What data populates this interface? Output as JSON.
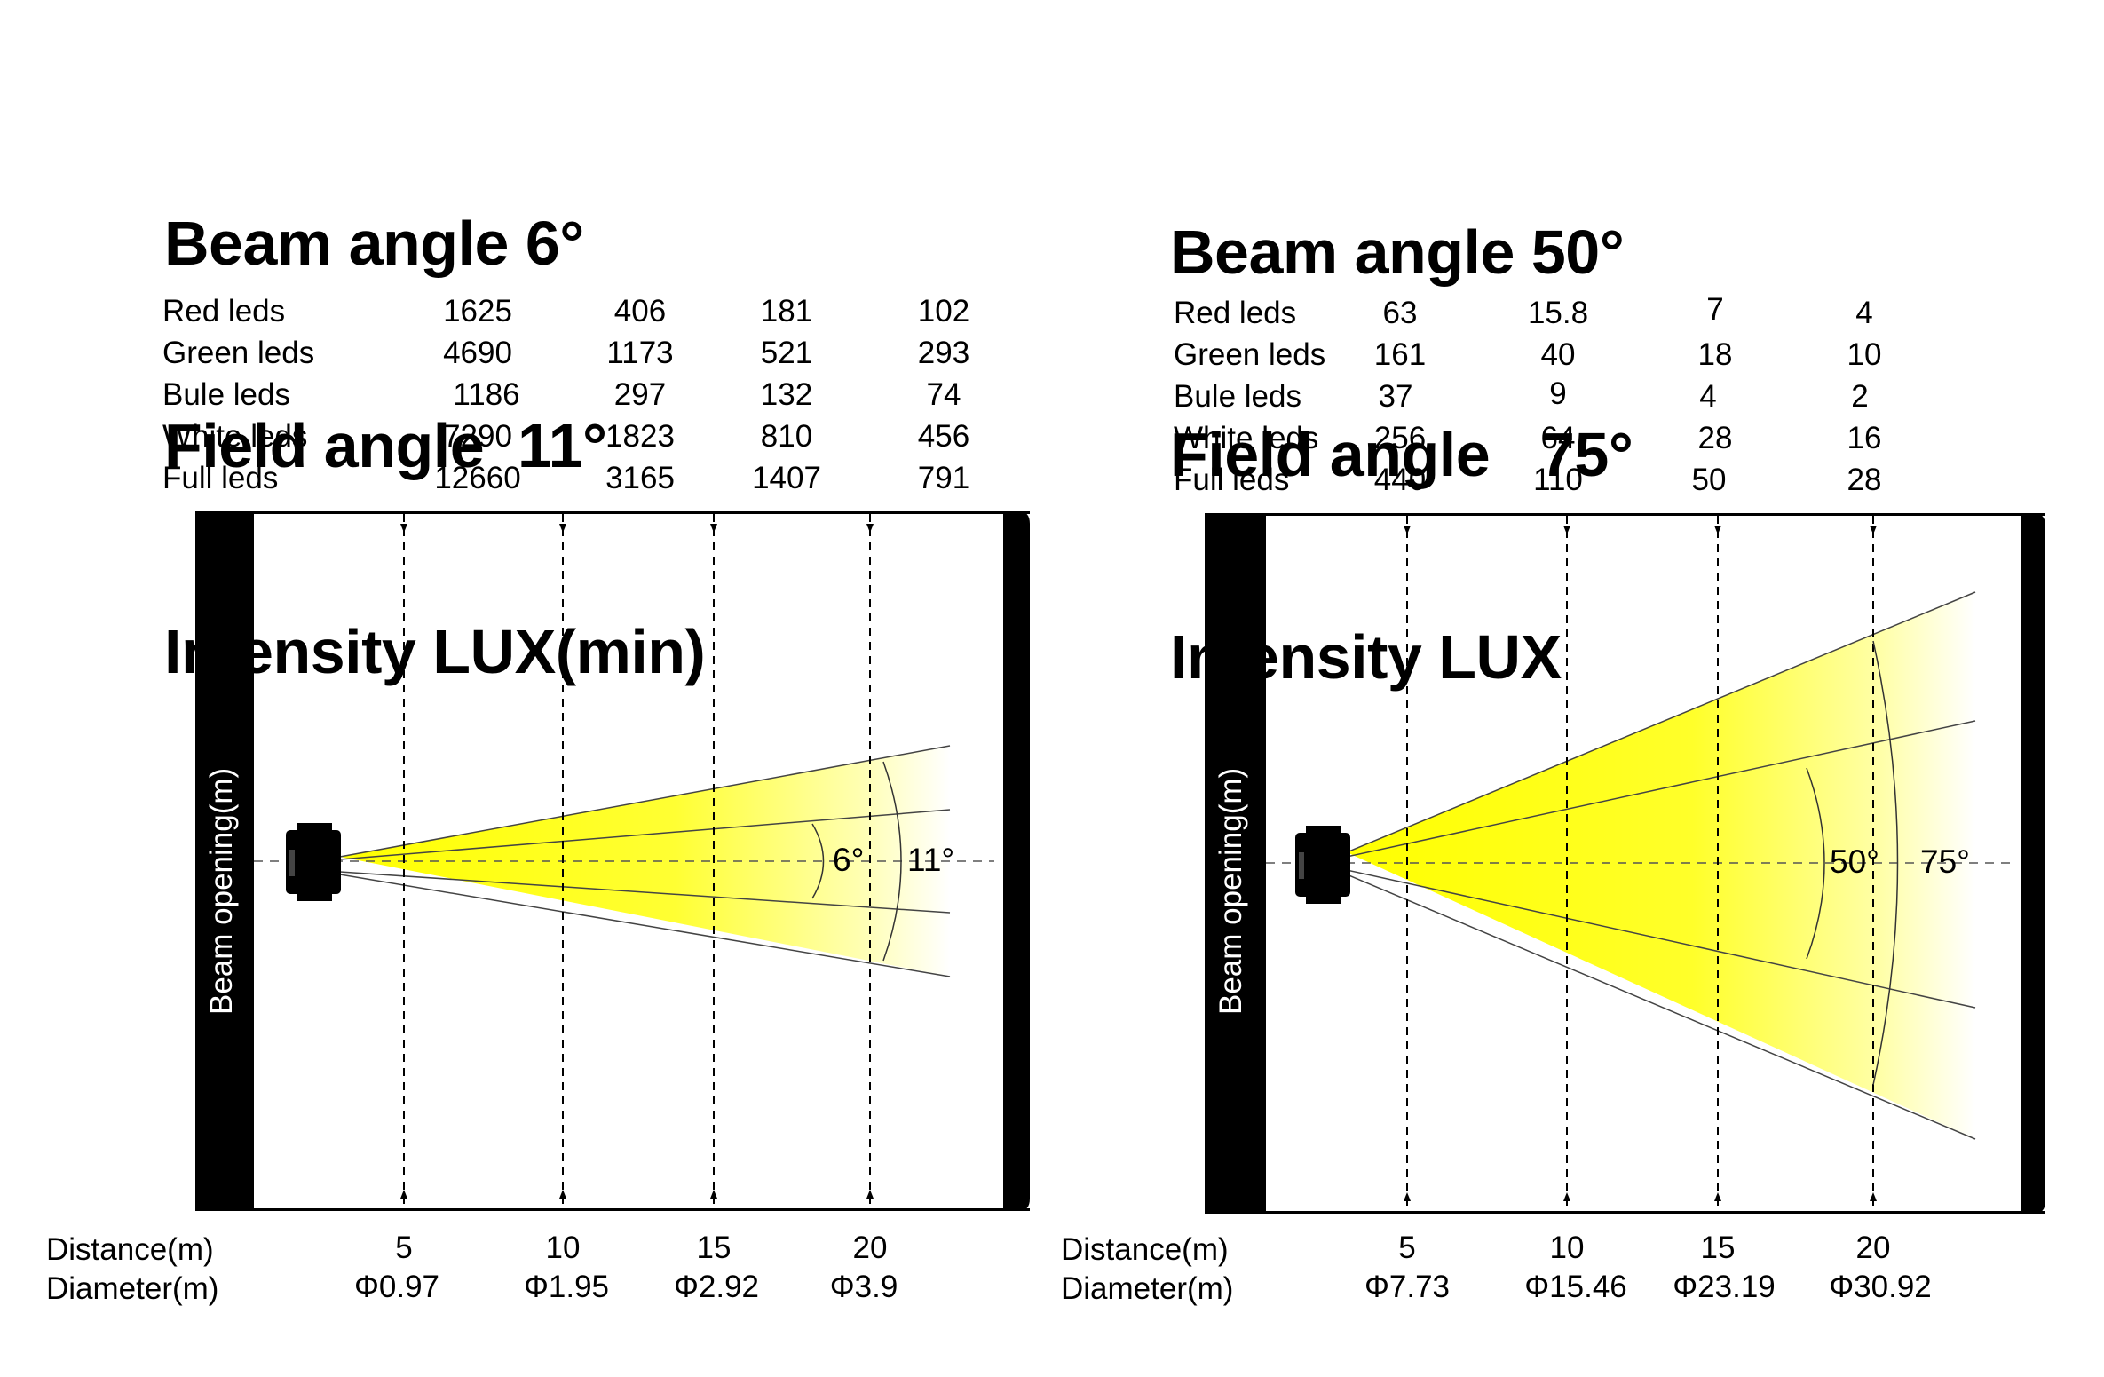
{
  "panels": [
    {
      "headings": [
        "Beam angle 6°",
        "Field angle  11°",
        "Intensity LUX(min)"
      ],
      "table": {
        "rows": [
          {
            "label": "Red leds",
            "values": [
              "1625",
              "406",
              "181",
              "102"
            ]
          },
          {
            "label": "Green leds",
            "values": [
              "4690",
              "1173",
              "521",
              "293"
            ]
          },
          {
            "label": "Bule leds",
            "values": [
              "1186",
              "297",
              "132",
              "74"
            ]
          },
          {
            "label": "White leds",
            "values": [
              "7290",
              "1823",
              "810",
              "456"
            ]
          },
          {
            "label": "Full leds",
            "values": [
              "12660",
              "3165",
              "1407",
              "791"
            ]
          }
        ]
      },
      "beam_label": "Beam opening(m)",
      "beam_angle_label": "6°",
      "field_angle_label": "11°",
      "beam_angle": 6,
      "field_angle": 11,
      "distance_label": "Distance(m)",
      "diameter_label": "Diameter(m)",
      "distances": [
        "5",
        "10",
        "15",
        "20"
      ],
      "diameters": [
        "Φ0.97",
        "Φ1.95",
        "Φ2.92",
        "Φ3.9"
      ]
    },
    {
      "headings": [
        "Beam angle 50°",
        "Field angle   75°",
        "Intensity LUX"
      ],
      "table": {
        "rows": [
          {
            "label": "Red leds",
            "values": [
              "63",
              "15.8",
              "7",
              "4"
            ]
          },
          {
            "label": "Green leds",
            "values": [
              "161",
              "40",
              "18",
              "10"
            ]
          },
          {
            "label": "Bule leds",
            "values": [
              "37",
              "9",
              "4",
              "2"
            ]
          },
          {
            "label": "White leds",
            "values": [
              "256",
              "64",
              "28",
              "16"
            ]
          },
          {
            "label": "Full leds",
            "values": [
              "440",
              "110",
              "50",
              "28"
            ]
          }
        ]
      },
      "beam_label": "Beam opening(m)",
      "beam_angle_label": "50°",
      "field_angle_label": "75°",
      "beam_angle": 50,
      "field_angle": 75,
      "distance_label": "Distance(m)",
      "diameter_label": "Diameter(m)",
      "distances": [
        "5",
        "10",
        "15",
        "20"
      ],
      "diameters": [
        "Φ7.73",
        "Φ15.46",
        "Φ23.19",
        "Φ30.92"
      ]
    }
  ],
  "colors": {
    "beam": "#ffff00",
    "wall": "#000000"
  }
}
